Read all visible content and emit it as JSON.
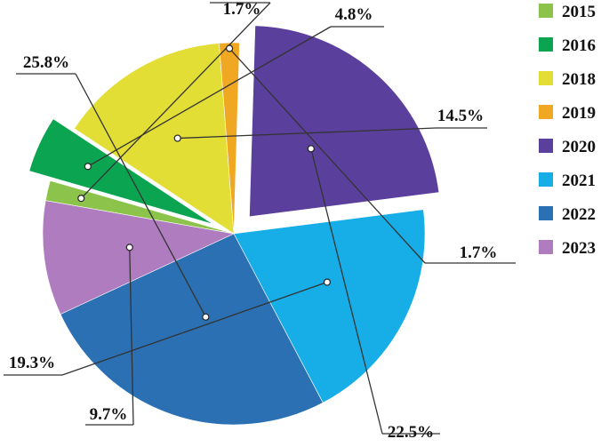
{
  "chart_data": {
    "type": "pie",
    "title": "",
    "slices": [
      {
        "label": "2015",
        "value": 1.7,
        "value_label": "1.7%",
        "color": "#8cc34a"
      },
      {
        "label": "2016",
        "value": 4.8,
        "value_label": "4.8%",
        "color": "#0ba552"
      },
      {
        "label": "2018",
        "value": 14.5,
        "value_label": "14.5%",
        "color": "#e2de35"
      },
      {
        "label": "2019",
        "value": 1.7,
        "value_label": "1.7%",
        "color": "#f0a722"
      },
      {
        "label": "2020",
        "value": 22.5,
        "value_label": "22.5%",
        "color": "#5b3f9c"
      },
      {
        "label": "2021",
        "value": 19.3,
        "value_label": "19.3%",
        "color": "#17aee8"
      },
      {
        "label": "2022",
        "value": 25.8,
        "value_label": "25.8%",
        "color": "#2a70b3"
      },
      {
        "label": "2023",
        "value": 9.7,
        "value_label": "9.7%",
        "color": "#b07cc0"
      }
    ],
    "exploded": [
      "2016",
      "2020"
    ],
    "legend_position": "right"
  }
}
